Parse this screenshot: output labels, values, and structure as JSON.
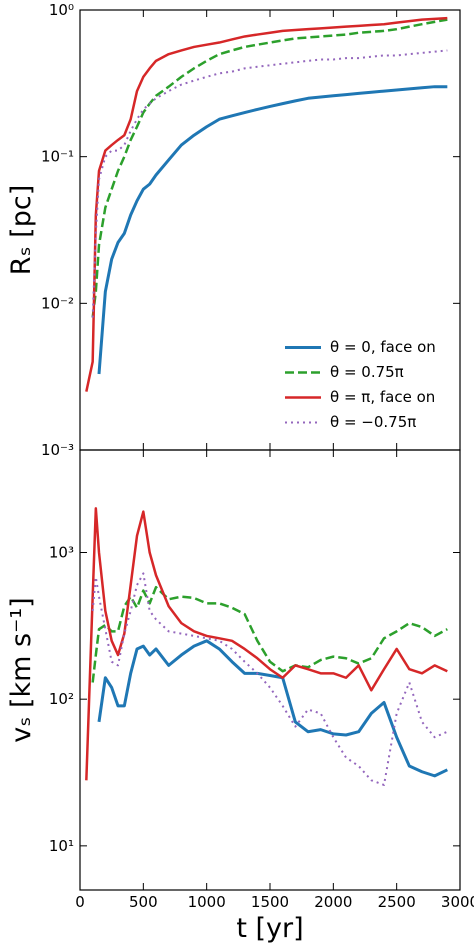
{
  "chart_data": [
    {
      "type": "line",
      "ylabel": "Rₛ [pc]",
      "log_y": true,
      "legend": "lower right",
      "xlim": [
        0,
        3000
      ],
      "xticks": [
        0,
        500,
        1000,
        1500,
        2000,
        2500,
        3000
      ],
      "ylim": [
        0.001,
        1
      ],
      "yticks": [
        {
          "value": 0.001,
          "label": "10⁻³"
        },
        {
          "value": 0.01,
          "label": "10⁻²"
        },
        {
          "value": 0.1,
          "label": "10⁻¹"
        },
        {
          "value": 1,
          "label": "10⁰"
        }
      ],
      "x": [
        50,
        100,
        125,
        150,
        200,
        250,
        300,
        350,
        400,
        450,
        500,
        550,
        600,
        700,
        800,
        900,
        1000,
        1100,
        1200,
        1300,
        1400,
        1500,
        1600,
        1700,
        1800,
        1900,
        2000,
        2100,
        2200,
        2300,
        2400,
        2500,
        2600,
        2700,
        2800,
        2900,
        3000
      ],
      "series": [
        {
          "name": "θ = 0, face on",
          "color": "#1f77b4",
          "linestyle": "solid",
          "linewidth": 3,
          "values": [
            null,
            null,
            null,
            0.0033,
            0.012,
            0.02,
            0.026,
            0.03,
            0.04,
            0.05,
            0.06,
            0.065,
            0.075,
            0.095,
            0.12,
            0.14,
            0.16,
            0.18,
            0.19,
            0.2,
            0.21,
            0.22,
            0.23,
            0.24,
            0.25,
            0.255,
            0.26,
            0.265,
            0.27,
            0.275,
            0.28,
            0.285,
            0.29,
            0.295,
            0.3,
            0.3,
            null
          ]
        },
        {
          "name": "θ = 0.75π",
          "color": "#2ca02c",
          "linestyle": "dashed",
          "linewidth": 2.5,
          "values": [
            null,
            0.008,
            0.012,
            0.025,
            0.045,
            0.06,
            0.08,
            0.1,
            0.13,
            0.16,
            0.2,
            0.23,
            0.26,
            0.3,
            0.35,
            0.4,
            0.45,
            0.5,
            0.53,
            0.56,
            0.58,
            0.6,
            0.62,
            0.64,
            0.65,
            0.66,
            0.67,
            0.68,
            0.7,
            0.71,
            0.72,
            0.74,
            0.77,
            0.8,
            0.83,
            0.86,
            null
          ]
        },
        {
          "name": "θ = π, face on",
          "color": "#d62728",
          "linestyle": "solid",
          "linewidth": 2.5,
          "values": [
            0.0025,
            0.004,
            0.04,
            0.08,
            0.11,
            0.12,
            0.13,
            0.14,
            0.18,
            0.28,
            0.35,
            0.4,
            0.45,
            0.5,
            0.53,
            0.56,
            0.58,
            0.6,
            0.63,
            0.66,
            0.68,
            0.7,
            0.72,
            0.73,
            0.74,
            0.75,
            0.76,
            0.77,
            0.78,
            0.79,
            0.8,
            0.82,
            0.84,
            0.86,
            0.87,
            0.88,
            null
          ]
        },
        {
          "name": "θ = −0.75π",
          "color": "#9467bd",
          "linestyle": "dotted",
          "linewidth": 2,
          "values": [
            null,
            0.008,
            0.03,
            0.07,
            0.1,
            0.11,
            0.11,
            0.12,
            0.15,
            0.18,
            0.21,
            0.23,
            0.25,
            0.28,
            0.31,
            0.33,
            0.35,
            0.37,
            0.38,
            0.4,
            0.41,
            0.42,
            0.43,
            0.44,
            0.45,
            0.46,
            0.46,
            0.47,
            0.47,
            0.48,
            0.49,
            0.49,
            0.5,
            0.51,
            0.52,
            0.53,
            null
          ]
        }
      ]
    },
    {
      "type": "line",
      "ylabel": "vₛ [km s⁻¹]",
      "xlabel": "t [yr]",
      "log_y": true,
      "xlim": [
        0,
        3000
      ],
      "xticks": [
        0,
        500,
        1000,
        1500,
        2000,
        2500,
        3000
      ],
      "ylim": [
        5,
        5000
      ],
      "yticks": [
        {
          "value": 10,
          "label": "10¹"
        },
        {
          "value": 100,
          "label": "10²"
        },
        {
          "value": 1000,
          "label": "10³"
        }
      ],
      "x": [
        50,
        100,
        125,
        150,
        200,
        250,
        300,
        350,
        400,
        450,
        500,
        550,
        600,
        700,
        800,
        900,
        1000,
        1100,
        1200,
        1300,
        1400,
        1500,
        1600,
        1700,
        1800,
        1900,
        2000,
        2100,
        2200,
        2300,
        2400,
        2500,
        2600,
        2700,
        2800,
        2900,
        3000
      ],
      "series": [
        {
          "color": "#1f77b4",
          "linestyle": "solid",
          "linewidth": 3,
          "values": [
            null,
            null,
            null,
            70,
            140,
            120,
            90,
            90,
            150,
            220,
            230,
            200,
            220,
            170,
            200,
            230,
            250,
            220,
            180,
            150,
            150,
            145,
            140,
            70,
            60,
            62,
            58,
            57,
            60,
            80,
            95,
            55,
            35,
            32,
            30,
            33,
            null
          ]
        },
        {
          "color": "#2ca02c",
          "linestyle": "dashed",
          "linewidth": 2.5,
          "values": [
            null,
            130,
            200,
            300,
            320,
            290,
            290,
            430,
            500,
            420,
            550,
            450,
            580,
            480,
            500,
            490,
            450,
            450,
            420,
            380,
            250,
            180,
            155,
            170,
            165,
            185,
            195,
            190,
            175,
            190,
            260,
            290,
            330,
            310,
            270,
            300,
            null
          ]
        },
        {
          "color": "#d62728",
          "linestyle": "solid",
          "linewidth": 2.5,
          "values": [
            28,
            500,
            2000,
            1000,
            400,
            250,
            200,
            280,
            600,
            1300,
            1900,
            1000,
            700,
            430,
            330,
            290,
            270,
            260,
            250,
            220,
            190,
            160,
            140,
            170,
            160,
            150,
            150,
            140,
            170,
            115,
            160,
            220,
            160,
            150,
            170,
            155,
            null
          ]
        },
        {
          "color": "#9467bd",
          "linestyle": "dotted",
          "linewidth": 2,
          "values": [
            null,
            400,
            680,
            500,
            300,
            180,
            170,
            280,
            400,
            600,
            720,
            400,
            350,
            290,
            280,
            270,
            260,
            250,
            220,
            180,
            150,
            120,
            90,
            65,
            85,
            80,
            55,
            40,
            35,
            28,
            26,
            80,
            130,
            70,
            55,
            60,
            null
          ]
        }
      ]
    }
  ]
}
